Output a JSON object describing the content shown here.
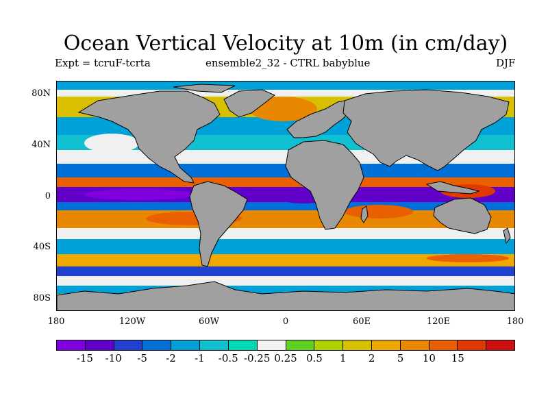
{
  "title": "Ocean Vertical Velocity at 10m (in cm/day)",
  "subtitle_left": "Expt = tcruF-tcrta",
  "subtitle_center": "ensemble2_32 - CTRL babyblue",
  "subtitle_right": "DJF",
  "map": {
    "land_color": "#a0a0a0",
    "ocean_base_color": "#f0a800"
  },
  "y_ticks": [
    "80N",
    "40N",
    "0",
    "40S",
    "80S"
  ],
  "x_ticks": [
    "180",
    "120W",
    "60W",
    "0",
    "60E",
    "120E",
    "180"
  ],
  "colorbar": {
    "colors": [
      "#8000e0",
      "#6000c8",
      "#2040d0",
      "#0070d8",
      "#00a0d8",
      "#10c0d0",
      "#00d8b8",
      "#f0f0f0",
      "#60d020",
      "#b0d000",
      "#d8c000",
      "#f0a800",
      "#e88800",
      "#e86000",
      "#e03800",
      "#d01010"
    ],
    "labels": [
      "-15",
      "-10",
      "-5",
      "-2",
      "-1",
      "-0.5",
      "-0.25",
      "0.25",
      "0.5",
      "1",
      "2",
      "5",
      "10",
      "15"
    ]
  }
}
